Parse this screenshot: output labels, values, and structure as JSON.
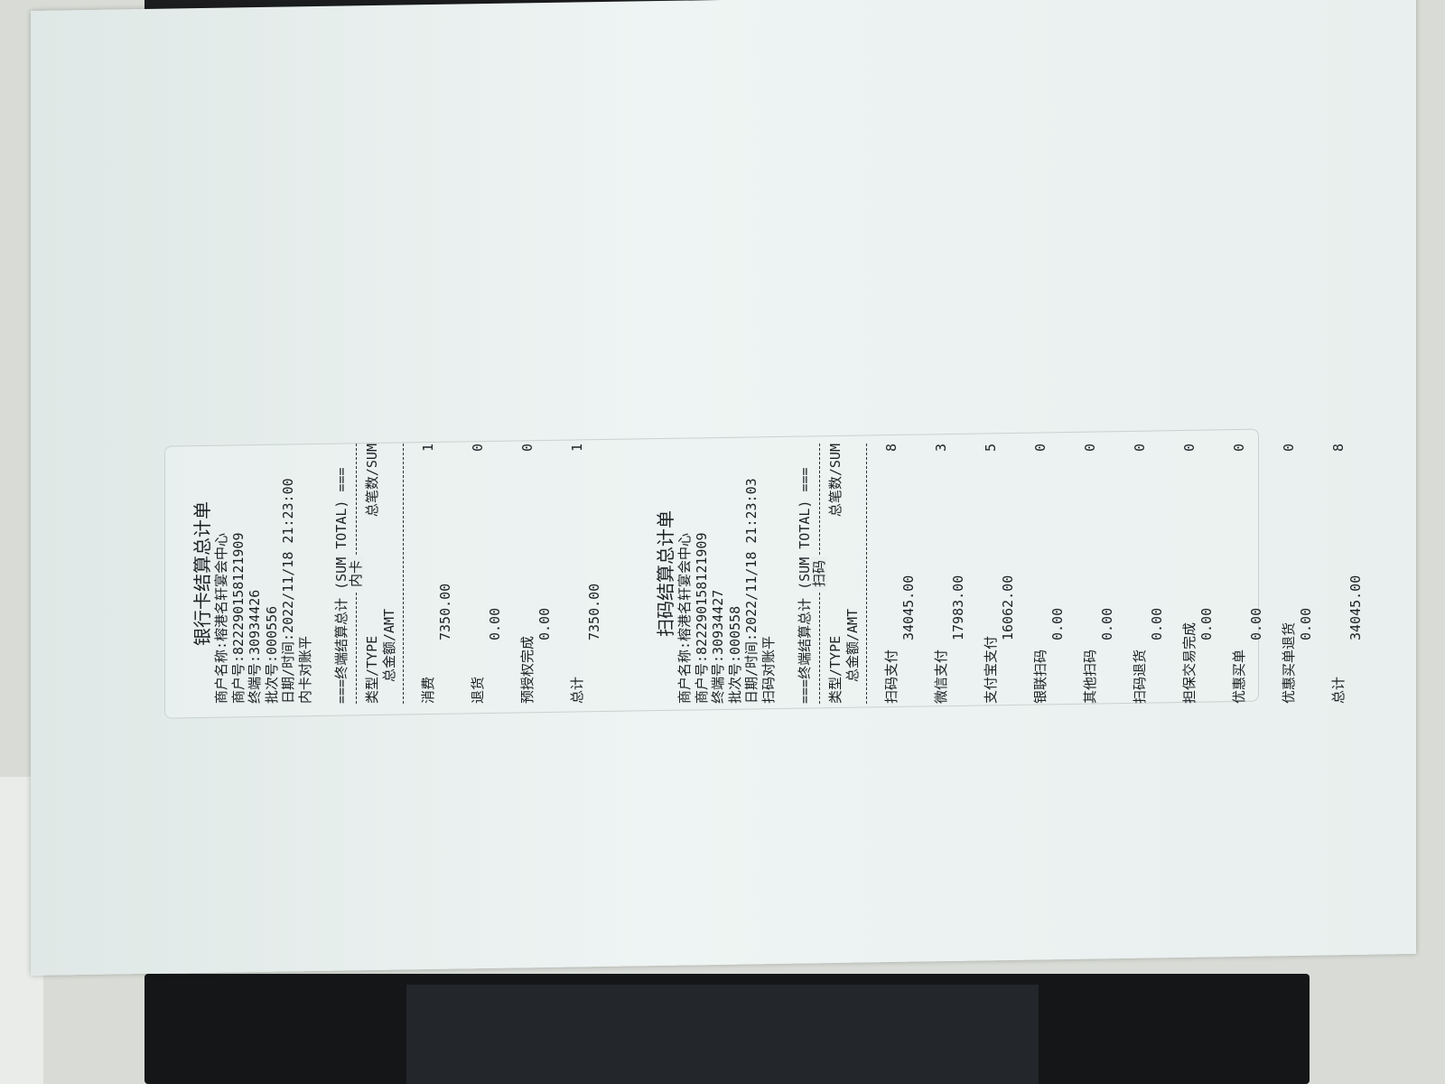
{
  "bank_card_receipt": {
    "title": "银行卡结算总计单",
    "merchant_name": "商户名称:榕港名轩宴会中心",
    "merchant_no": "商户号:822290158121909",
    "terminal_no": "终端号:30934426",
    "batch_no": "批次号:000556",
    "datetime": "日期/时间:2022/11/18 21:23:00",
    "status": "内卡对账平",
    "sum_header": "===终端结算总计 (SUM TOTAL) ===",
    "section_label": "内卡",
    "col_type": "类型/TYPE",
    "col_count": "总笔数/SUM",
    "col_amount": "总金额/AMT",
    "rows": [
      {
        "name": "消费",
        "amount": "7350.00",
        "count": "1"
      },
      {
        "name": "退货",
        "amount": "0.00",
        "count": "0"
      },
      {
        "name": "预授权完成",
        "amount": "0.00",
        "count": "0"
      },
      {
        "name": "总计",
        "amount": "7350.00",
        "count": "1"
      }
    ]
  },
  "scan_receipt": {
    "title": "扫码结算总计单",
    "merchant_name": "商户名称:榕港名轩宴会中心",
    "merchant_no": "商户号:822290158121909",
    "terminal_no": "终端号:30934427",
    "batch_no": "批次号:000558",
    "datetime": "日期/时间:2022/11/18 21:23:03",
    "status": "扫码对账平",
    "sum_header": "===终端结算总计 (SUM TOTAL) ===",
    "section_label": "扫码",
    "col_type": "类型/TYPE",
    "col_count": "总笔数/SUM",
    "col_amount": "总金额/AMT",
    "rows": [
      {
        "name": "扫码支付",
        "amount": "34045.00",
        "count": "8"
      },
      {
        "name": "微信支付",
        "amount": "17983.00",
        "count": "3"
      },
      {
        "name": "支付宝支付",
        "amount": "16062.00",
        "count": "5"
      },
      {
        "name": "银联扫码",
        "amount": "0.00",
        "count": "0"
      },
      {
        "name": "其他扫码",
        "amount": "0.00",
        "count": "0"
      },
      {
        "name": "扫码退货",
        "amount": "0.00",
        "count": "0"
      },
      {
        "name": "担保交易完成",
        "amount": "0.00",
        "count": "0"
      },
      {
        "name": "优惠买单",
        "amount": "0.00",
        "count": "0"
      },
      {
        "name": "优惠买单退货",
        "amount": "0.00",
        "count": "0"
      },
      {
        "name": "总计",
        "amount": "34045.00",
        "count": "8"
      }
    ]
  }
}
